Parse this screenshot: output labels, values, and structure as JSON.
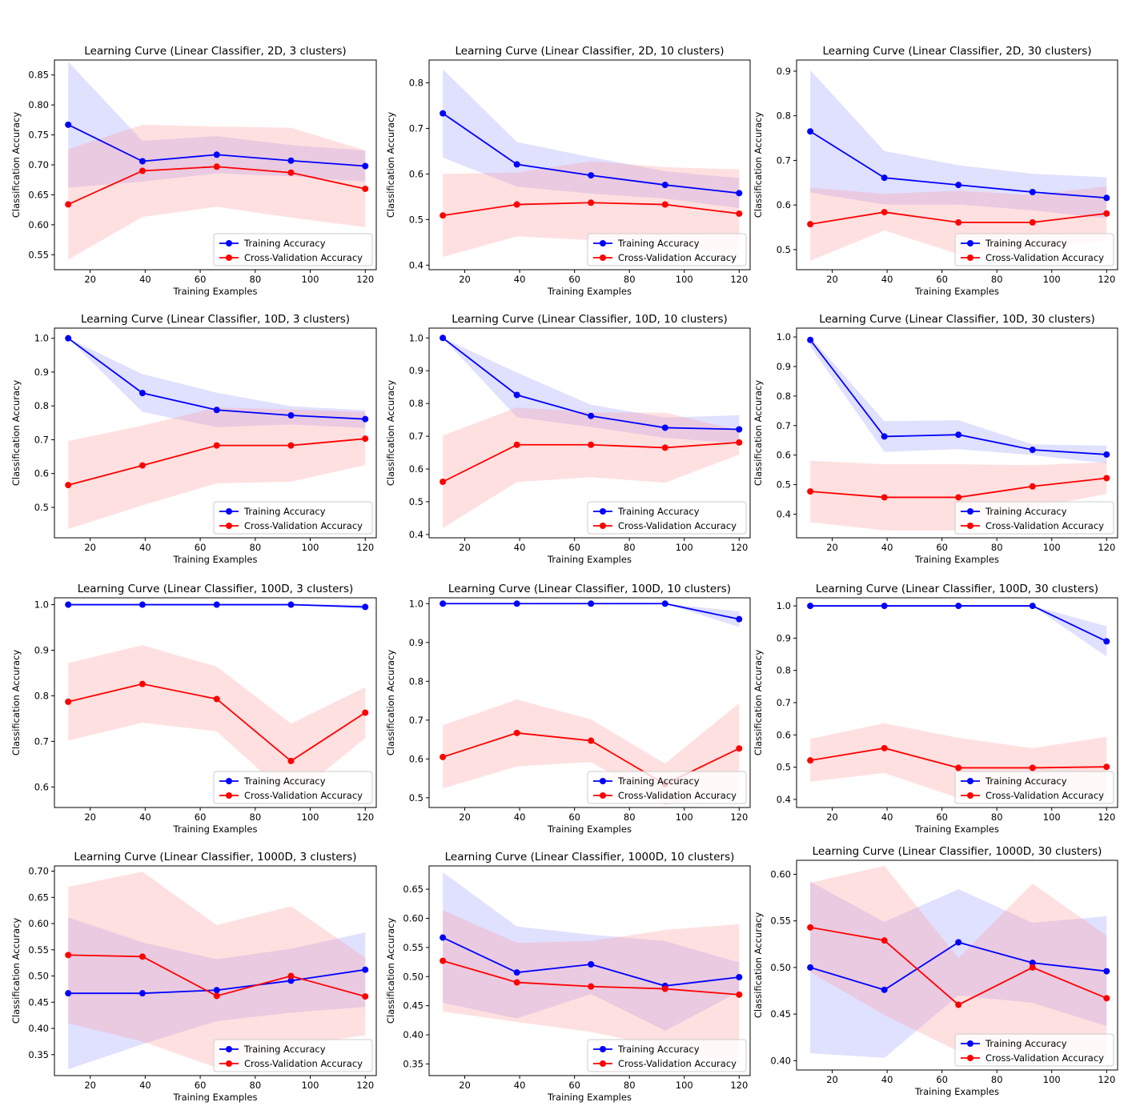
{
  "colors": {
    "training": "#0000ff",
    "cv": "#ff0000",
    "training_band": "#9999ff",
    "cv_band": "#ff9999",
    "axes": "#000000"
  },
  "chart_data": [
    {
      "type": "line",
      "title": "Learning Curve (Linear Classifier, 2D, 3 clusters)",
      "xlabel": "Training Examples",
      "ylabel": "Classification Accuracy",
      "xlim": [
        7,
        124
      ],
      "ylim": [
        0.525,
        0.875
      ],
      "xticks": [
        20,
        40,
        60,
        80,
        100,
        120
      ],
      "yticks": [
        0.55,
        0.6,
        0.65,
        0.7,
        0.75,
        0.8,
        0.85
      ],
      "legend": "lower-right",
      "grid": false,
      "x": [
        12,
        39,
        66,
        93,
        120
      ],
      "series": [
        {
          "name": "Training Accuracy",
          "values": [
            0.767,
            0.706,
            0.717,
            0.707,
            0.698
          ],
          "band_low": [
            0.662,
            0.672,
            0.686,
            0.681,
            0.672
          ],
          "band_high": [
            0.872,
            0.74,
            0.748,
            0.733,
            0.724
          ]
        },
        {
          "name": "Cross-Validation Accuracy",
          "values": [
            0.634,
            0.69,
            0.697,
            0.687,
            0.66
          ],
          "band_low": [
            0.542,
            0.613,
            0.63,
            0.612,
            0.596
          ],
          "band_high": [
            0.726,
            0.767,
            0.764,
            0.762,
            0.724
          ]
        }
      ]
    },
    {
      "type": "line",
      "title": "Learning Curve (Linear Classifier, 2D, 10 clusters)",
      "xlabel": "Training Examples",
      "ylabel": "Classification Accuracy",
      "xlim": [
        7,
        124
      ],
      "ylim": [
        0.39,
        0.85
      ],
      "xticks": [
        20,
        40,
        60,
        80,
        100,
        120
      ],
      "yticks": [
        0.4,
        0.5,
        0.6,
        0.7,
        0.8
      ],
      "legend": "lower-right",
      "grid": false,
      "x": [
        12,
        39,
        66,
        93,
        120
      ],
      "series": [
        {
          "name": "Training Accuracy",
          "values": [
            0.733,
            0.621,
            0.597,
            0.576,
            0.558
          ],
          "band_low": [
            0.636,
            0.572,
            0.557,
            0.546,
            0.525
          ],
          "band_high": [
            0.83,
            0.67,
            0.637,
            0.606,
            0.591
          ]
        },
        {
          "name": "Cross-Validation Accuracy",
          "values": [
            0.509,
            0.533,
            0.537,
            0.533,
            0.513
          ],
          "band_low": [
            0.418,
            0.463,
            0.455,
            0.45,
            0.415
          ],
          "band_high": [
            0.6,
            0.603,
            0.628,
            0.615,
            0.61
          ]
        }
      ]
    },
    {
      "type": "line",
      "title": "Learning Curve (Linear Classifier, 2D, 30 clusters)",
      "xlabel": "Training Examples",
      "ylabel": "Classification Accuracy",
      "xlim": [
        7,
        124
      ],
      "ylim": [
        0.455,
        0.925
      ],
      "xticks": [
        20,
        40,
        60,
        80,
        100,
        120
      ],
      "yticks": [
        0.5,
        0.6,
        0.7,
        0.8,
        0.9
      ],
      "legend": "lower-right",
      "grid": false,
      "x": [
        12,
        39,
        66,
        93,
        120
      ],
      "series": [
        {
          "name": "Training Accuracy",
          "values": [
            0.765,
            0.661,
            0.645,
            0.629,
            0.616
          ],
          "band_low": [
            0.628,
            0.601,
            0.601,
            0.588,
            0.57
          ],
          "band_high": [
            0.902,
            0.721,
            0.689,
            0.67,
            0.662
          ]
        },
        {
          "name": "Cross-Validation Accuracy",
          "values": [
            0.557,
            0.584,
            0.561,
            0.561,
            0.581
          ],
          "band_low": [
            0.475,
            0.543,
            0.49,
            0.5,
            0.52
          ],
          "band_high": [
            0.639,
            0.625,
            0.632,
            0.622,
            0.642
          ]
        }
      ]
    },
    {
      "type": "line",
      "title": "Learning Curve (Linear Classifier, 10D, 3 clusters)",
      "xlabel": "Training Examples",
      "ylabel": "Classification Accuracy",
      "xlim": [
        7,
        124
      ],
      "ylim": [
        0.41,
        1.03
      ],
      "xticks": [
        20,
        40,
        60,
        80,
        100,
        120
      ],
      "yticks": [
        0.5,
        0.6,
        0.7,
        0.8,
        0.9,
        1.0
      ],
      "legend": "lower-right",
      "grid": false,
      "x": [
        12,
        39,
        66,
        93,
        120
      ],
      "series": [
        {
          "name": "Training Accuracy",
          "values": [
            1.0,
            0.838,
            0.788,
            0.772,
            0.761
          ],
          "band_low": [
            1.0,
            0.782,
            0.737,
            0.745,
            0.735
          ],
          "band_high": [
            1.0,
            0.894,
            0.839,
            0.799,
            0.787
          ]
        },
        {
          "name": "Cross-Validation Accuracy",
          "values": [
            0.566,
            0.624,
            0.683,
            0.683,
            0.703
          ],
          "band_low": [
            0.436,
            0.506,
            0.571,
            0.576,
            0.625
          ],
          "band_high": [
            0.696,
            0.742,
            0.795,
            0.79,
            0.781
          ]
        }
      ]
    },
    {
      "type": "line",
      "title": "Learning Curve (Linear Classifier, 10D, 10 clusters)",
      "xlabel": "Training Examples",
      "ylabel": "Classification Accuracy",
      "xlim": [
        7,
        124
      ],
      "ylim": [
        0.39,
        1.03
      ],
      "xticks": [
        20,
        40,
        60,
        80,
        100,
        120
      ],
      "yticks": [
        0.4,
        0.5,
        0.6,
        0.7,
        0.8,
        0.9,
        1.0
      ],
      "legend": "lower-right",
      "grid": false,
      "x": [
        12,
        39,
        66,
        93,
        120
      ],
      "series": [
        {
          "name": "Training Accuracy",
          "values": [
            1.0,
            0.826,
            0.762,
            0.726,
            0.721
          ],
          "band_low": [
            1.0,
            0.758,
            0.728,
            0.695,
            0.678
          ],
          "band_high": [
            1.0,
            0.894,
            0.796,
            0.757,
            0.764
          ]
        },
        {
          "name": "Cross-Validation Accuracy",
          "values": [
            0.561,
            0.674,
            0.674,
            0.665,
            0.681
          ],
          "band_low": [
            0.42,
            0.56,
            0.575,
            0.558,
            0.644
          ],
          "band_high": [
            0.702,
            0.788,
            0.773,
            0.772,
            0.718
          ]
        }
      ]
    },
    {
      "type": "line",
      "title": "Learning Curve (Linear Classifier, 10D, 30 clusters)",
      "xlabel": "Training Examples",
      "ylabel": "Classification Accuracy",
      "xlim": [
        7,
        124
      ],
      "ylim": [
        0.32,
        1.03
      ],
      "xticks": [
        20,
        40,
        60,
        80,
        100,
        120
      ],
      "yticks": [
        0.4,
        0.5,
        0.6,
        0.7,
        0.8,
        0.9,
        1.0
      ],
      "legend": "lower-right",
      "grid": false,
      "x": [
        12,
        39,
        66,
        93,
        120
      ],
      "series": [
        {
          "name": "Training Accuracy",
          "values": [
            0.99,
            0.663,
            0.669,
            0.618,
            0.602
          ],
          "band_low": [
            0.968,
            0.611,
            0.62,
            0.6,
            0.572
          ],
          "band_high": [
            1.0,
            0.715,
            0.718,
            0.636,
            0.632
          ]
        },
        {
          "name": "Cross-Validation Accuracy",
          "values": [
            0.477,
            0.457,
            0.457,
            0.494,
            0.522
          ],
          "band_low": [
            0.373,
            0.345,
            0.345,
            0.422,
            0.468
          ],
          "band_high": [
            0.581,
            0.569,
            0.569,
            0.566,
            0.576
          ]
        }
      ]
    },
    {
      "type": "line",
      "title": "Learning Curve (Linear Classifier, 100D, 3 clusters)",
      "xlabel": "Training Examples",
      "ylabel": "Classification Accuracy",
      "xlim": [
        7,
        124
      ],
      "ylim": [
        0.555,
        1.015
      ],
      "xticks": [
        20,
        40,
        60,
        80,
        100,
        120
      ],
      "yticks": [
        0.6,
        0.7,
        0.8,
        0.9,
        1.0
      ],
      "legend": "lower-right",
      "grid": false,
      "x": [
        12,
        39,
        66,
        93,
        120
      ],
      "series": [
        {
          "name": "Training Accuracy",
          "values": [
            1.0,
            1.0,
            1.0,
            1.0,
            0.995
          ],
          "band_low": [
            1.0,
            1.0,
            1.0,
            1.0,
            0.99
          ],
          "band_high": [
            1.0,
            1.0,
            1.0,
            1.0,
            1.0
          ]
        },
        {
          "name": "Cross-Validation Accuracy",
          "values": [
            0.787,
            0.826,
            0.793,
            0.657,
            0.763
          ],
          "band_low": [
            0.702,
            0.741,
            0.722,
            0.575,
            0.707
          ],
          "band_high": [
            0.872,
            0.911,
            0.864,
            0.739,
            0.819
          ]
        }
      ]
    },
    {
      "type": "line",
      "title": "Learning Curve (Linear Classifier, 100D, 10 clusters)",
      "xlabel": "Training Examples",
      "ylabel": "Classification Accuracy",
      "xlim": [
        7,
        124
      ],
      "ylim": [
        0.475,
        1.015
      ],
      "xticks": [
        20,
        40,
        60,
        80,
        100,
        120
      ],
      "yticks": [
        0.5,
        0.6,
        0.7,
        0.8,
        0.9,
        1.0
      ],
      "legend": "lower-right",
      "grid": false,
      "x": [
        12,
        39,
        66,
        93,
        120
      ],
      "series": [
        {
          "name": "Training Accuracy",
          "values": [
            1.0,
            1.0,
            1.0,
            1.0,
            0.96
          ],
          "band_low": [
            1.0,
            1.0,
            1.0,
            1.0,
            0.94
          ],
          "band_high": [
            1.0,
            1.0,
            1.0,
            1.0,
            0.98
          ]
        },
        {
          "name": "Cross-Validation Accuracy",
          "values": [
            0.605,
            0.667,
            0.647,
            0.535,
            0.627
          ],
          "band_low": [
            0.524,
            0.581,
            0.592,
            0.482,
            0.51
          ],
          "band_high": [
            0.687,
            0.753,
            0.702,
            0.588,
            0.744
          ]
        }
      ]
    },
    {
      "type": "line",
      "title": "Learning Curve (Linear Classifier, 100D, 30 clusters)",
      "xlabel": "Training Examples",
      "ylabel": "Classification Accuracy",
      "xlim": [
        7,
        124
      ],
      "ylim": [
        0.375,
        1.025
      ],
      "xticks": [
        20,
        40,
        60,
        80,
        100,
        120
      ],
      "yticks": [
        0.4,
        0.5,
        0.6,
        0.7,
        0.8,
        0.9,
        1.0
      ],
      "legend": "lower-right",
      "grid": false,
      "x": [
        12,
        39,
        66,
        93,
        120
      ],
      "series": [
        {
          "name": "Training Accuracy",
          "values": [
            1.0,
            1.0,
            1.0,
            1.0,
            0.89
          ],
          "band_low": [
            1.0,
            1.0,
            1.0,
            1.0,
            0.843
          ],
          "band_high": [
            1.0,
            1.0,
            1.0,
            1.0,
            0.937
          ]
        },
        {
          "name": "Cross-Validation Accuracy",
          "values": [
            0.521,
            0.559,
            0.498,
            0.498,
            0.501
          ],
          "band_low": [
            0.455,
            0.482,
            0.404,
            0.437,
            0.408
          ],
          "band_high": [
            0.588,
            0.636,
            0.591,
            0.559,
            0.594
          ]
        }
      ]
    },
    {
      "type": "line",
      "title": "Learning Curve (Linear Classifier, 1000D, 3 clusters)",
      "xlabel": "Training Examples",
      "ylabel": "Classification Accuracy",
      "xlim": [
        7,
        124
      ],
      "ylim": [
        0.31,
        0.71
      ],
      "xticks": [
        20,
        40,
        60,
        80,
        100,
        120
      ],
      "yticks": [
        0.35,
        0.4,
        0.45,
        0.5,
        0.55,
        0.6,
        0.65,
        0.7
      ],
      "legend": "lower-right",
      "grid": false,
      "x": [
        12,
        39,
        66,
        93,
        120
      ],
      "series": [
        {
          "name": "Training Accuracy",
          "values": [
            0.467,
            0.467,
            0.473,
            0.491,
            0.512
          ],
          "band_low": [
            0.322,
            0.37,
            0.414,
            0.43,
            0.441
          ],
          "band_high": [
            0.612,
            0.564,
            0.532,
            0.552,
            0.583
          ]
        },
        {
          "name": "Cross-Validation Accuracy",
          "values": [
            0.54,
            0.537,
            0.462,
            0.5,
            0.461
          ],
          "band_low": [
            0.41,
            0.375,
            0.325,
            0.367,
            0.387
          ],
          "band_high": [
            0.67,
            0.699,
            0.597,
            0.633,
            0.535
          ]
        }
      ]
    },
    {
      "type": "line",
      "title": "Learning Curve (Linear Classifier, 1000D, 10 clusters)",
      "xlabel": "Training Examples",
      "ylabel": "Classification Accuracy",
      "xlim": [
        7,
        124
      ],
      "ylim": [
        0.33,
        0.69
      ],
      "xticks": [
        20,
        40,
        60,
        80,
        100,
        120
      ],
      "yticks": [
        0.35,
        0.4,
        0.45,
        0.5,
        0.55,
        0.6,
        0.65
      ],
      "legend": "lower-right",
      "grid": false,
      "x": [
        12,
        39,
        66,
        93,
        120
      ],
      "series": [
        {
          "name": "Training Accuracy",
          "values": [
            0.567,
            0.507,
            0.521,
            0.484,
            0.499
          ],
          "band_low": [
            0.455,
            0.428,
            0.47,
            0.407,
            0.474
          ],
          "band_high": [
            0.679,
            0.586,
            0.572,
            0.561,
            0.524
          ]
        },
        {
          "name": "Cross-Validation Accuracy",
          "values": [
            0.527,
            0.49,
            0.483,
            0.479,
            0.469
          ],
          "band_low": [
            0.44,
            0.422,
            0.405,
            0.378,
            0.348
          ],
          "band_high": [
            0.614,
            0.558,
            0.561,
            0.58,
            0.59
          ]
        }
      ]
    },
    {
      "type": "line",
      "title": "Learning Curve (Linear Classifier, 1000D, 30 clusters)",
      "xlabel": "Training Examples",
      "ylabel": "Classification Accuracy",
      "xlim": [
        7,
        124
      ],
      "ylim": [
        0.39,
        0.615
      ],
      "xticks": [
        20,
        40,
        60,
        80,
        100,
        120
      ],
      "yticks": [
        0.4,
        0.45,
        0.5,
        0.55,
        0.6
      ],
      "legend": "lower-right",
      "grid": false,
      "x": [
        12,
        39,
        66,
        93,
        120
      ],
      "series": [
        {
          "name": "Training Accuracy",
          "values": [
            0.5,
            0.476,
            0.527,
            0.505,
            0.496
          ],
          "band_low": [
            0.408,
            0.403,
            0.47,
            0.462,
            0.437
          ],
          "band_high": [
            0.592,
            0.549,
            0.584,
            0.548,
            0.555
          ]
        },
        {
          "name": "Cross-Validation Accuracy",
          "values": [
            0.543,
            0.529,
            0.46,
            0.5,
            0.467
          ],
          "band_low": [
            0.495,
            0.449,
            0.41,
            0.41,
            0.4
          ],
          "band_high": [
            0.591,
            0.609,
            0.51,
            0.59,
            0.534
          ]
        }
      ]
    }
  ]
}
